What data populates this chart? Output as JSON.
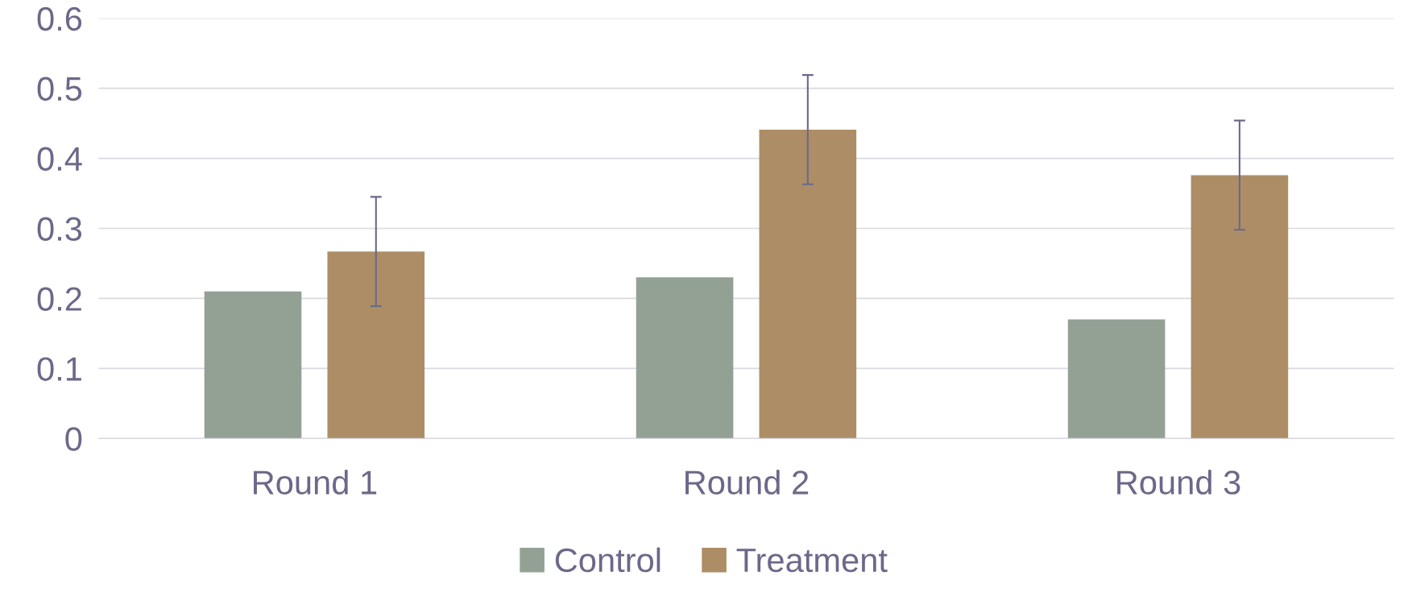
{
  "chart_data": {
    "type": "bar",
    "categories": [
      "Round 1",
      "Round 2",
      "Round 3"
    ],
    "series": [
      {
        "name": "Control",
        "color": "#93a195",
        "values": [
          0.21,
          0.23,
          0.17
        ]
      },
      {
        "name": "Treatment",
        "color": "#ac8d65",
        "values": [
          0.267,
          0.441,
          0.376
        ],
        "errors": [
          0.078,
          0.078,
          0.078
        ]
      }
    ],
    "ylim": [
      0,
      0.6
    ],
    "yticks": [
      {
        "value": 0,
        "label": "0"
      },
      0.1,
      0.2,
      0.3,
      0.4,
      0.5,
      0.6
    ],
    "grid": "y",
    "legend": "bottom"
  }
}
